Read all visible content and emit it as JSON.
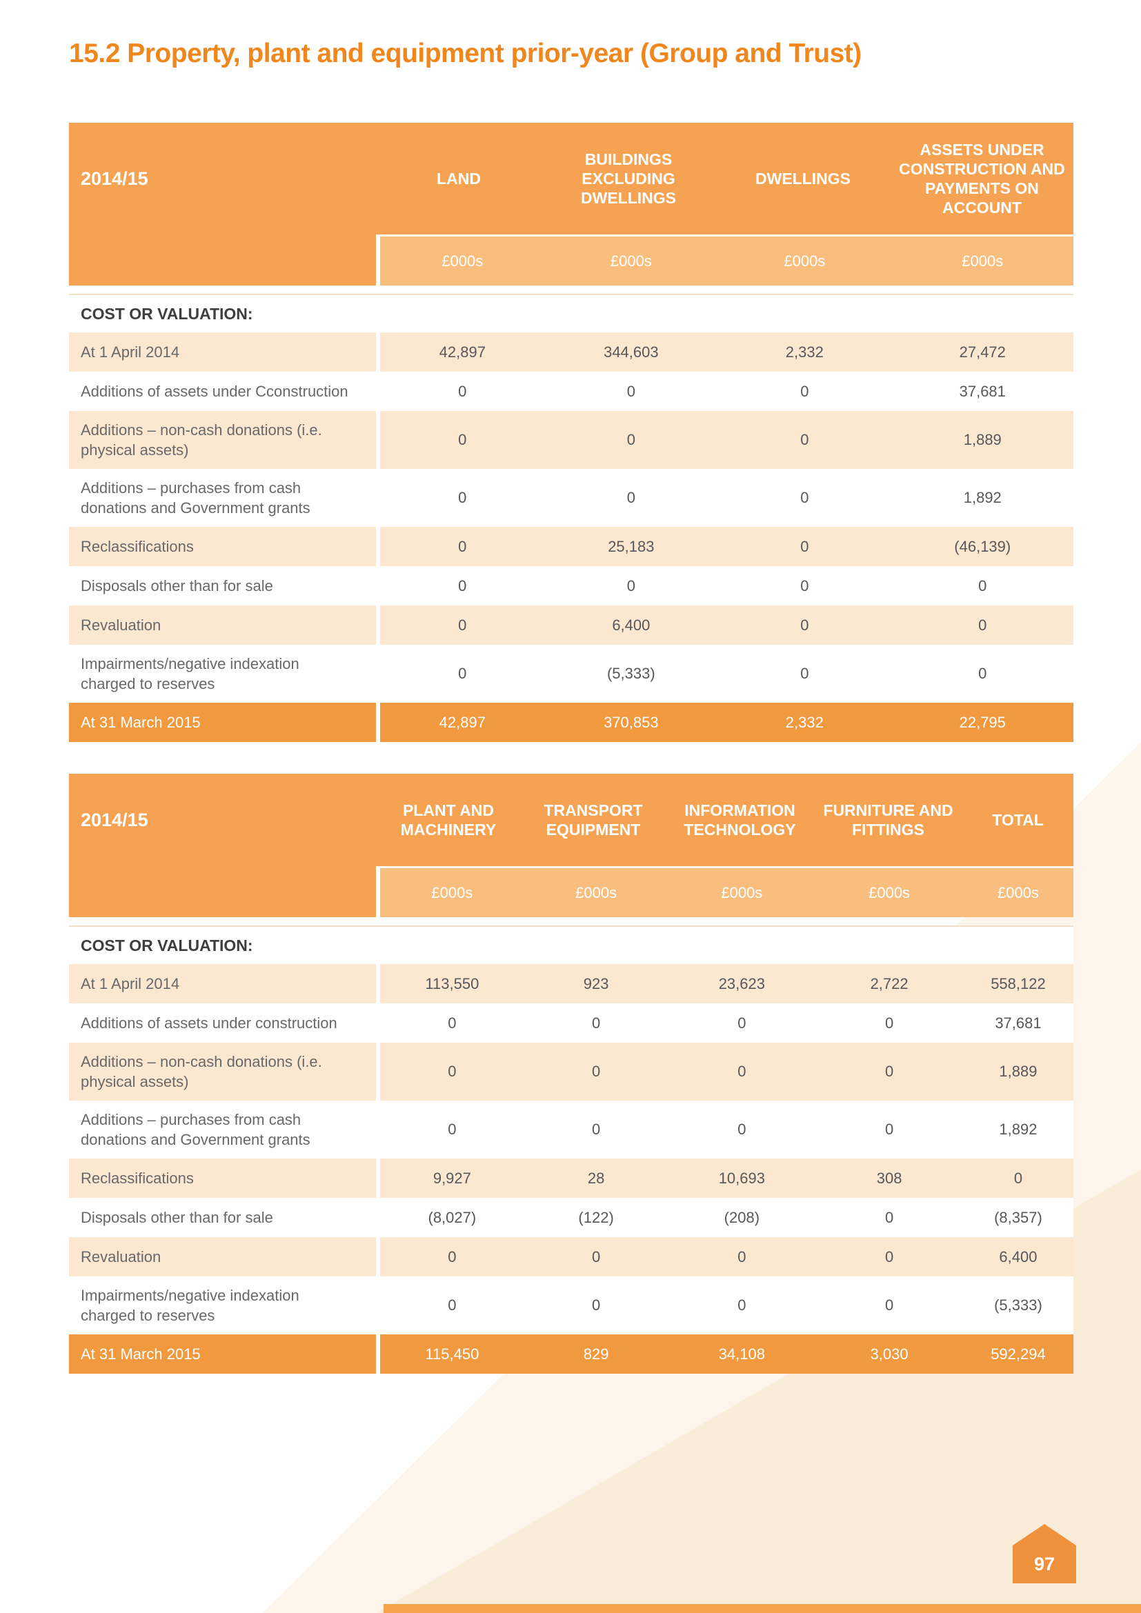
{
  "page": {
    "title": "15.2 Property, plant and equipment prior-year (Group and Trust)",
    "page_number": "97"
  },
  "colors": {
    "title_orange": "#F0861C",
    "header_orange": "#F5A353",
    "subheader_orange": "#F9BE7E",
    "row_light_orange": "#FCE8D0",
    "total_row_orange": "#F1993F",
    "text_gray": "#57575A"
  },
  "table1": {
    "period": "2014/15",
    "unit_label": "£000s",
    "section_label": "COST OR VALUATION:",
    "columns": [
      "LAND",
      "BUILDINGS EXCLUDING DWELLINGS",
      "DWELLINGS",
      "ASSETS UNDER CONSTRUCTION AND PAYMENTS ON ACCOUNT"
    ],
    "rows": [
      {
        "label": "At 1 April 2014",
        "values": [
          "42,897",
          "344,603",
          "2,332",
          "27,472"
        ]
      },
      {
        "label": "Additions of assets under Cconstruction",
        "values": [
          "0",
          "0",
          "0",
          "37,681"
        ]
      },
      {
        "label": "Additions – non-cash donations (i.e. physical assets)",
        "values": [
          "0",
          "0",
          "0",
          "1,889"
        ]
      },
      {
        "label": "Additions – purchases from cash donations and Government grants",
        "values": [
          "0",
          "0",
          "0",
          "1,892"
        ]
      },
      {
        "label": "Reclassifications",
        "values": [
          "0",
          "25,183",
          "0",
          "(46,139)"
        ]
      },
      {
        "label": "Disposals other than for sale",
        "values": [
          "0",
          "0",
          "0",
          "0"
        ]
      },
      {
        "label": "Revaluation",
        "values": [
          "0",
          "6,400",
          "0",
          "0"
        ]
      },
      {
        "label": "Impairments/negative indexation charged to reserves",
        "values": [
          "0",
          "(5,333)",
          "0",
          "0"
        ]
      },
      {
        "label": "At 31 March 2015",
        "type": "total",
        "values": [
          "42,897",
          "370,853",
          "2,332",
          "22,795"
        ]
      }
    ]
  },
  "table2": {
    "period": "2014/15",
    "unit_label": "£000s",
    "section_label": "COST OR VALUATION:",
    "columns": [
      "PLANT AND MACHINERY",
      "TRANSPORT EQUIPMENT",
      "INFORMATION TECHNOLOGY",
      "FURNITURE AND FITTINGS",
      "TOTAL"
    ],
    "rows": [
      {
        "label": "At 1 April 2014",
        "values": [
          "113,550",
          "923",
          "23,623",
          "2,722",
          "558,122"
        ]
      },
      {
        "label": "Additions of assets under construction",
        "values": [
          "0",
          "0",
          "0",
          "0",
          "37,681"
        ]
      },
      {
        "label": "Additions – non-cash donations (i.e. physical assets)",
        "values": [
          "0",
          "0",
          "0",
          "0",
          "1,889"
        ]
      },
      {
        "label": "Additions – purchases from cash donations and Government grants",
        "values": [
          "0",
          "0",
          "0",
          "0",
          "1,892"
        ]
      },
      {
        "label": "Reclassifications",
        "values": [
          "9,927",
          "28",
          "10,693",
          "308",
          "0"
        ]
      },
      {
        "label": "Disposals other than for sale",
        "values": [
          "(8,027)",
          "(122)",
          "(208)",
          "0",
          "(8,357)"
        ]
      },
      {
        "label": "Revaluation",
        "values": [
          "0",
          "0",
          "0",
          "0",
          "6,400"
        ]
      },
      {
        "label": "Impairments/negative indexation charged to reserves",
        "values": [
          "0",
          "0",
          "0",
          "0",
          "(5,333)"
        ]
      },
      {
        "label": "At 31 March 2015",
        "type": "total",
        "values": [
          "115,450",
          "829",
          "34,108",
          "3,030",
          "592,294"
        ]
      }
    ]
  }
}
